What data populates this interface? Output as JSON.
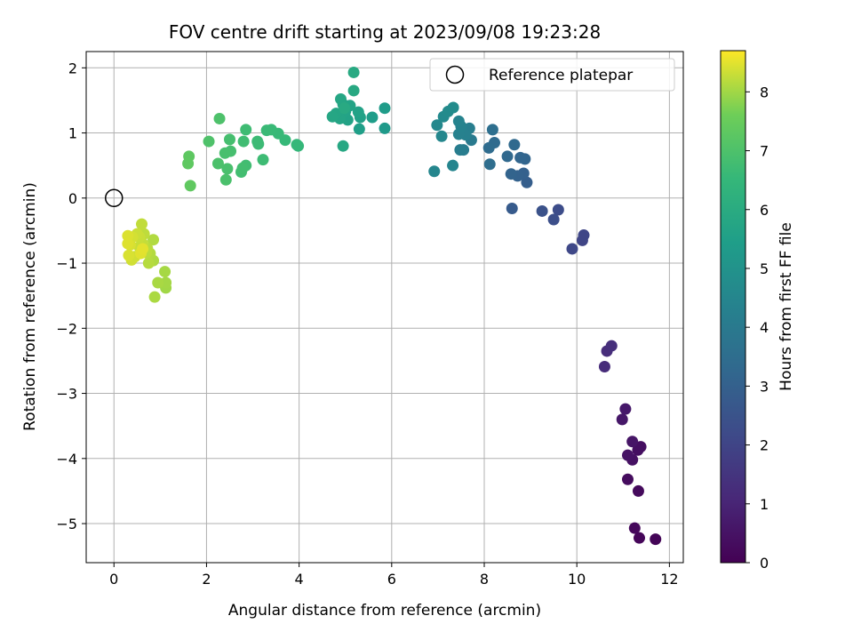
{
  "chart_data": {
    "type": "scatter",
    "title": "FOV centre drift starting at 2023/09/08 19:23:28",
    "xlabel": "Angular distance from reference (arcmin)",
    "ylabel": "Rotation from reference (arcmin)",
    "xlim": [
      -0.6,
      12.3
    ],
    "ylim": [
      -5.6,
      2.25
    ],
    "xticks": [
      0,
      2,
      4,
      6,
      8,
      10,
      12
    ],
    "yticks": [
      -5,
      -4,
      -3,
      -2,
      -1,
      0,
      1,
      2
    ],
    "grid": true,
    "legend": {
      "placement": "top-right",
      "entries": [
        "Reference platepar"
      ]
    },
    "reference_point": {
      "name": "Reference platepar",
      "x": 0,
      "y": 0,
      "marker": "open-circle"
    },
    "colorbar": {
      "label": "Hours from first FF file",
      "colormap": "viridis",
      "range": [
        0,
        8.7
      ],
      "ticks": [
        0,
        1,
        2,
        3,
        4,
        5,
        6,
        7,
        8
      ]
    },
    "points": [
      [
        11.7,
        -5.24,
        0.1
      ],
      [
        11.35,
        -5.22,
        0.15
      ],
      [
        11.25,
        -5.07,
        0.2
      ],
      [
        11.33,
        -4.5,
        0.25
      ],
      [
        11.1,
        -4.32,
        0.3
      ],
      [
        11.38,
        -3.82,
        0.35
      ],
      [
        11.32,
        -3.87,
        0.4
      ],
      [
        11.2,
        -4.02,
        0.45
      ],
      [
        11.1,
        -3.95,
        0.5
      ],
      [
        11.2,
        -3.74,
        0.55
      ],
      [
        10.98,
        -3.4,
        0.6
      ],
      [
        11.05,
        -3.24,
        0.65
      ],
      [
        10.6,
        -2.59,
        1.2
      ],
      [
        10.65,
        -2.35,
        1.25
      ],
      [
        10.75,
        -2.27,
        1.3
      ],
      [
        10.12,
        -0.65,
        2.0
      ],
      [
        10.15,
        -0.57,
        2.05
      ],
      [
        9.9,
        -0.78,
        2.1
      ],
      [
        9.6,
        -0.18,
        2.3
      ],
      [
        9.5,
        -0.33,
        2.35
      ],
      [
        9.25,
        -0.2,
        2.45
      ],
      [
        8.6,
        -0.16,
        2.8
      ],
      [
        8.92,
        0.24,
        2.9
      ],
      [
        8.85,
        0.38,
        3.0
      ],
      [
        8.72,
        0.34,
        3.05
      ],
      [
        8.58,
        0.37,
        3.1
      ],
      [
        8.88,
        0.6,
        3.15
      ],
      [
        8.78,
        0.62,
        3.2
      ],
      [
        8.5,
        0.64,
        3.3
      ],
      [
        8.65,
        0.82,
        3.35
      ],
      [
        8.22,
        0.85,
        3.4
      ],
      [
        8.1,
        0.77,
        3.45
      ],
      [
        8.12,
        0.52,
        3.5
      ],
      [
        8.18,
        1.05,
        3.55
      ],
      [
        7.72,
        0.89,
        4.0
      ],
      [
        7.55,
        0.74,
        4.1
      ],
      [
        7.48,
        0.74,
        4.15
      ],
      [
        7.68,
        1.07,
        4.2
      ],
      [
        7.6,
        0.97,
        4.25
      ],
      [
        7.45,
        0.98,
        4.3
      ],
      [
        7.5,
        1.1,
        4.35
      ],
      [
        7.45,
        1.18,
        4.4
      ],
      [
        7.32,
        0.5,
        4.45
      ],
      [
        6.92,
        0.41,
        4.5
      ],
      [
        7.08,
        0.95,
        4.55
      ],
      [
        6.98,
        1.12,
        4.6
      ],
      [
        7.12,
        1.25,
        4.65
      ],
      [
        7.22,
        1.33,
        4.7
      ],
      [
        7.33,
        1.39,
        4.75
      ],
      [
        5.85,
        1.07,
        5.3
      ],
      [
        5.85,
        1.38,
        5.35
      ],
      [
        5.58,
        1.24,
        5.4
      ],
      [
        5.3,
        1.06,
        5.5
      ],
      [
        5.32,
        1.24,
        5.55
      ],
      [
        5.28,
        1.32,
        5.6
      ],
      [
        5.05,
        1.2,
        5.62
      ],
      [
        5.1,
        1.42,
        5.65
      ],
      [
        5.0,
        1.33,
        5.67
      ],
      [
        4.95,
        1.44,
        5.7
      ],
      [
        4.88,
        1.22,
        5.72
      ],
      [
        4.8,
        1.3,
        5.75
      ],
      [
        4.72,
        1.25,
        5.78
      ],
      [
        4.9,
        1.52,
        5.8
      ],
      [
        4.95,
        0.8,
        5.85
      ],
      [
        5.18,
        1.65,
        5.88
      ],
      [
        5.18,
        1.93,
        5.9
      ],
      [
        4.98,
        1.38,
        5.92
      ],
      [
        3.98,
        0.8,
        6.5
      ],
      [
        3.95,
        0.82,
        6.52
      ],
      [
        3.7,
        0.89,
        6.55
      ],
      [
        3.55,
        0.99,
        6.58
      ],
      [
        3.4,
        1.05,
        6.6
      ],
      [
        3.3,
        1.04,
        6.62
      ],
      [
        3.1,
        0.87,
        6.65
      ],
      [
        3.12,
        0.83,
        6.67
      ],
      [
        3.22,
        0.59,
        6.7
      ],
      [
        2.85,
        1.05,
        6.72
      ],
      [
        2.8,
        0.87,
        6.75
      ],
      [
        2.85,
        0.5,
        6.77
      ],
      [
        2.75,
        0.4,
        6.8
      ],
      [
        2.78,
        0.46,
        6.82
      ],
      [
        2.5,
        0.9,
        6.85
      ],
      [
        2.52,
        0.72,
        6.87
      ],
      [
        2.4,
        0.69,
        6.9
      ],
      [
        2.45,
        0.45,
        6.92
      ],
      [
        2.42,
        0.28,
        6.95
      ],
      [
        2.25,
        0.53,
        6.97
      ],
      [
        2.28,
        1.22,
        7.0
      ],
      [
        2.05,
        0.87,
        7.02
      ],
      [
        1.62,
        0.64,
        7.3
      ],
      [
        1.6,
        0.53,
        7.32
      ],
      [
        1.65,
        0.19,
        7.35
      ],
      [
        1.12,
        -1.38,
        8.0
      ],
      [
        1.12,
        -1.3,
        8.02
      ],
      [
        1.1,
        -1.13,
        8.04
      ],
      [
        0.95,
        -1.3,
        8.06
      ],
      [
        0.88,
        -1.52,
        8.08
      ],
      [
        0.85,
        -0.96,
        8.1
      ],
      [
        0.85,
        -0.64,
        8.12
      ],
      [
        0.78,
        -0.85,
        8.14
      ],
      [
        0.75,
        -1.0,
        8.16
      ],
      [
        0.72,
        -0.77,
        8.18
      ],
      [
        0.7,
        -0.84,
        8.2
      ],
      [
        0.65,
        -0.55,
        8.22
      ],
      [
        0.6,
        -0.4,
        8.24
      ],
      [
        0.62,
        -0.7,
        8.26
      ],
      [
        0.55,
        -0.75,
        8.28
      ],
      [
        0.55,
        -0.6,
        8.3
      ],
      [
        0.5,
        -0.55,
        8.32
      ],
      [
        0.45,
        -0.9,
        8.34
      ],
      [
        0.38,
        -0.95,
        8.36
      ],
      [
        0.4,
        -0.6,
        8.38
      ],
      [
        0.35,
        -0.72,
        8.4
      ],
      [
        0.32,
        -0.88,
        8.42
      ],
      [
        0.3,
        -0.58,
        8.44
      ],
      [
        0.3,
        -0.7,
        8.46
      ],
      [
        0.58,
        -0.85,
        8.48
      ],
      [
        0.62,
        -0.78,
        8.5
      ]
    ]
  }
}
